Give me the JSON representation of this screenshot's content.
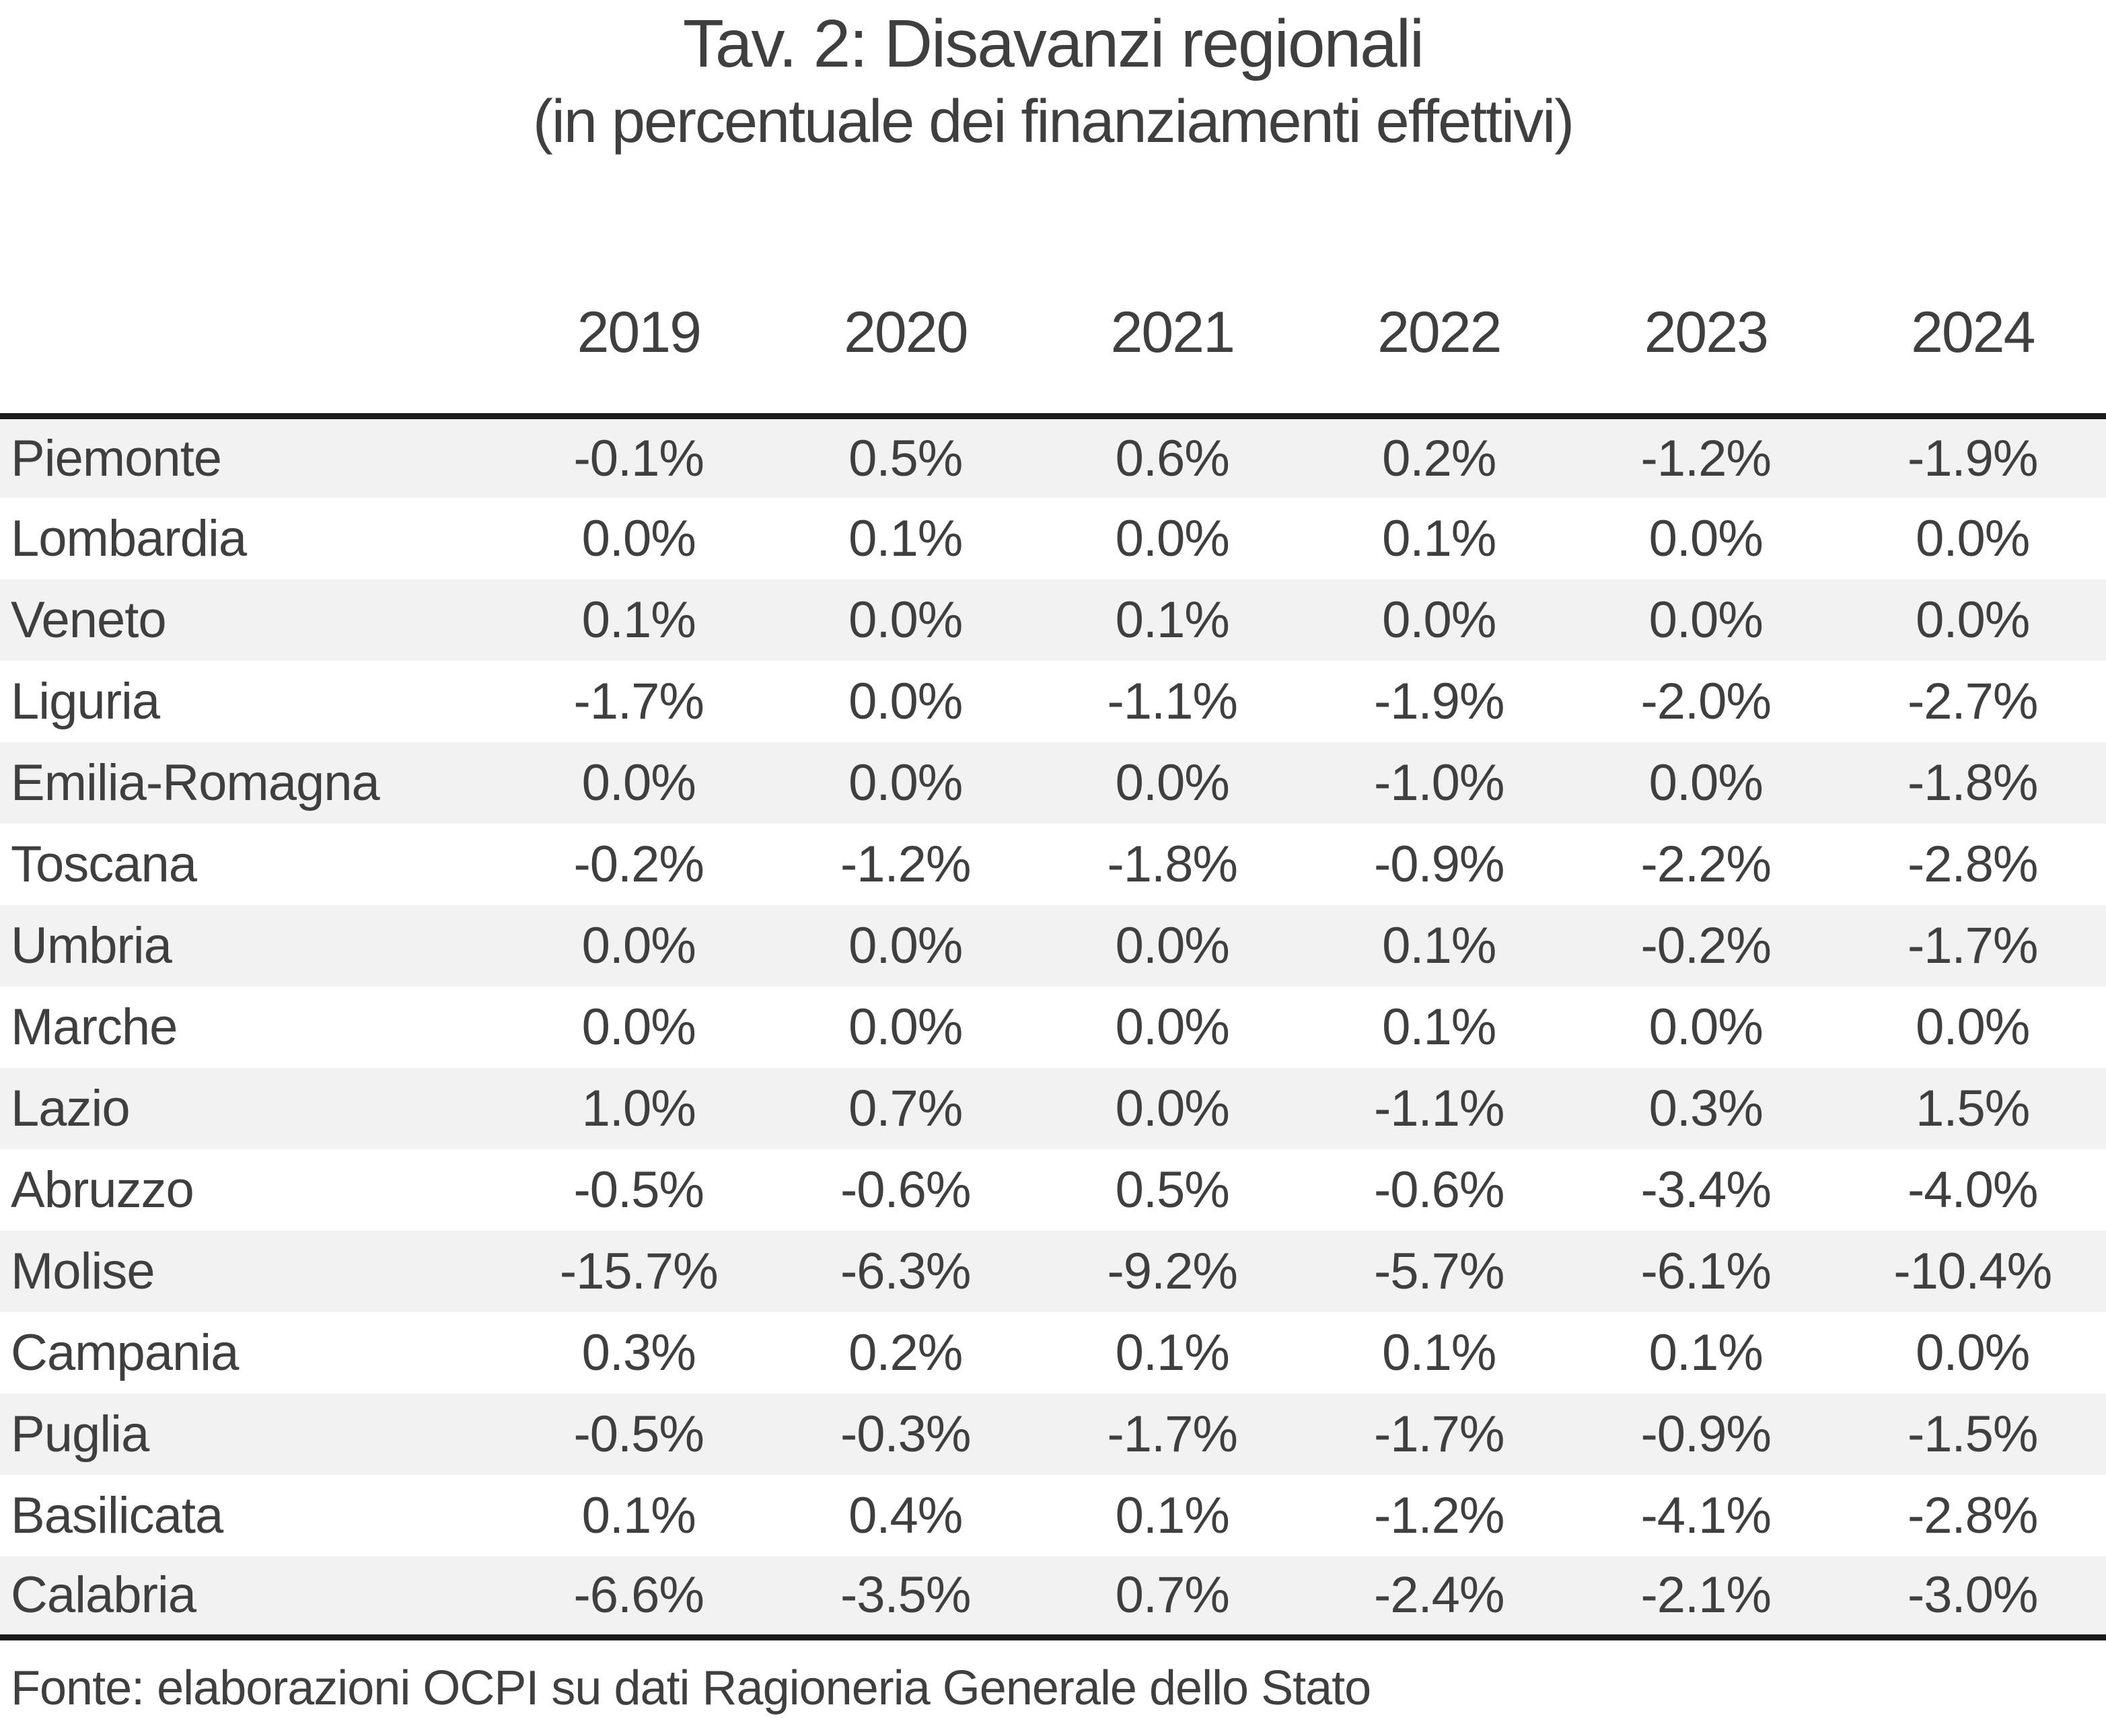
{
  "title": "Tav. 2: Disavanzi regionali",
  "subtitle": "(in percentuale dei finanziamenti effettivi)",
  "source": "Fonte: elaborazioni OCPI su dati Ragioneria Generale dello Stato",
  "colors": {
    "text": "#3f3f3f",
    "row_band": "#f2f2f2",
    "table_border": "#1a1a1a",
    "background": "#ffffff"
  },
  "chart_data": {
    "type": "table",
    "region_column_header": "",
    "columns": [
      "2019",
      "2020",
      "2021",
      "2022",
      "2023",
      "2024"
    ],
    "rows": [
      {
        "region": "Piemonte",
        "values": [
          "-0.1%",
          "0.5%",
          "0.6%",
          "0.2%",
          "-1.2%",
          "-1.9%"
        ]
      },
      {
        "region": "Lombardia",
        "values": [
          "0.0%",
          "0.1%",
          "0.0%",
          "0.1%",
          "0.0%",
          "0.0%"
        ]
      },
      {
        "region": "Veneto",
        "values": [
          "0.1%",
          "0.0%",
          "0.1%",
          "0.0%",
          "0.0%",
          "0.0%"
        ]
      },
      {
        "region": "Liguria",
        "values": [
          "-1.7%",
          "0.0%",
          "-1.1%",
          "-1.9%",
          "-2.0%",
          "-2.7%"
        ]
      },
      {
        "region": "Emilia-Romagna",
        "values": [
          "0.0%",
          "0.0%",
          "0.0%",
          "-1.0%",
          "0.0%",
          "-1.8%"
        ]
      },
      {
        "region": "Toscana",
        "values": [
          "-0.2%",
          "-1.2%",
          "-1.8%",
          "-0.9%",
          "-2.2%",
          "-2.8%"
        ]
      },
      {
        "region": "Umbria",
        "values": [
          "0.0%",
          "0.0%",
          "0.0%",
          "0.1%",
          "-0.2%",
          "-1.7%"
        ]
      },
      {
        "region": "Marche",
        "values": [
          "0.0%",
          "0.0%",
          "0.0%",
          "0.1%",
          "0.0%",
          "0.0%"
        ]
      },
      {
        "region": "Lazio",
        "values": [
          "1.0%",
          "0.7%",
          "0.0%",
          "-1.1%",
          "0.3%",
          "1.5%"
        ]
      },
      {
        "region": "Abruzzo",
        "values": [
          "-0.5%",
          "-0.6%",
          "0.5%",
          "-0.6%",
          "-3.4%",
          "-4.0%"
        ]
      },
      {
        "region": "Molise",
        "values": [
          "-15.7%",
          "-6.3%",
          "-9.2%",
          "-5.7%",
          "-6.1%",
          "-10.4%"
        ]
      },
      {
        "region": "Campania",
        "values": [
          "0.3%",
          "0.2%",
          "0.1%",
          "0.1%",
          "0.1%",
          "0.0%"
        ]
      },
      {
        "region": "Puglia",
        "values": [
          "-0.5%",
          "-0.3%",
          "-1.7%",
          "-1.7%",
          "-0.9%",
          "-1.5%"
        ]
      },
      {
        "region": "Basilicata",
        "values": [
          "0.1%",
          "0.4%",
          "0.1%",
          "-1.2%",
          "-4.1%",
          "-2.8%"
        ]
      },
      {
        "region": "Calabria",
        "values": [
          "-6.6%",
          "-3.5%",
          "0.7%",
          "-2.4%",
          "-2.1%",
          "-3.0%"
        ]
      }
    ]
  }
}
